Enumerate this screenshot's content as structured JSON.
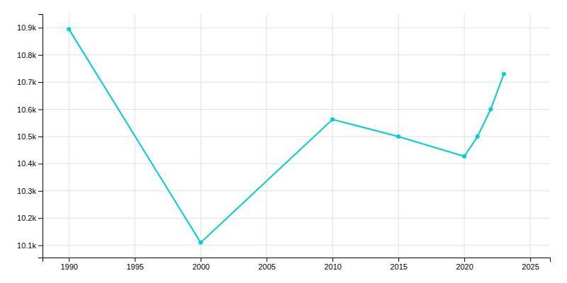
{
  "chart_data": {
    "type": "line",
    "x": [
      1990,
      2000,
      2010,
      2015,
      2020,
      2021,
      2022,
      2023
    ],
    "values": [
      10895,
      10110,
      10563,
      10500,
      10427,
      10500,
      10600,
      10730
    ],
    "color": "#00CED1",
    "marker": "circle",
    "xlim": [
      1988,
      2026.5
    ],
    "ylim": [
      10055,
      10950
    ],
    "xticks": [
      1990,
      1995,
      2000,
      2005,
      2010,
      2015,
      2020,
      2025
    ],
    "yticks": [
      {
        "value": 10100,
        "label": "10.1k"
      },
      {
        "value": 10200,
        "label": "10.2k"
      },
      {
        "value": 10300,
        "label": "10.3k"
      },
      {
        "value": 10400,
        "label": "10.4k"
      },
      {
        "value": 10500,
        "label": "10.5k"
      },
      {
        "value": 10600,
        "label": "10.6k"
      },
      {
        "value": 10700,
        "label": "10.7k"
      },
      {
        "value": 10800,
        "label": "10.8k"
      },
      {
        "value": 10900,
        "label": "10.9k"
      }
    ],
    "grid": true
  }
}
